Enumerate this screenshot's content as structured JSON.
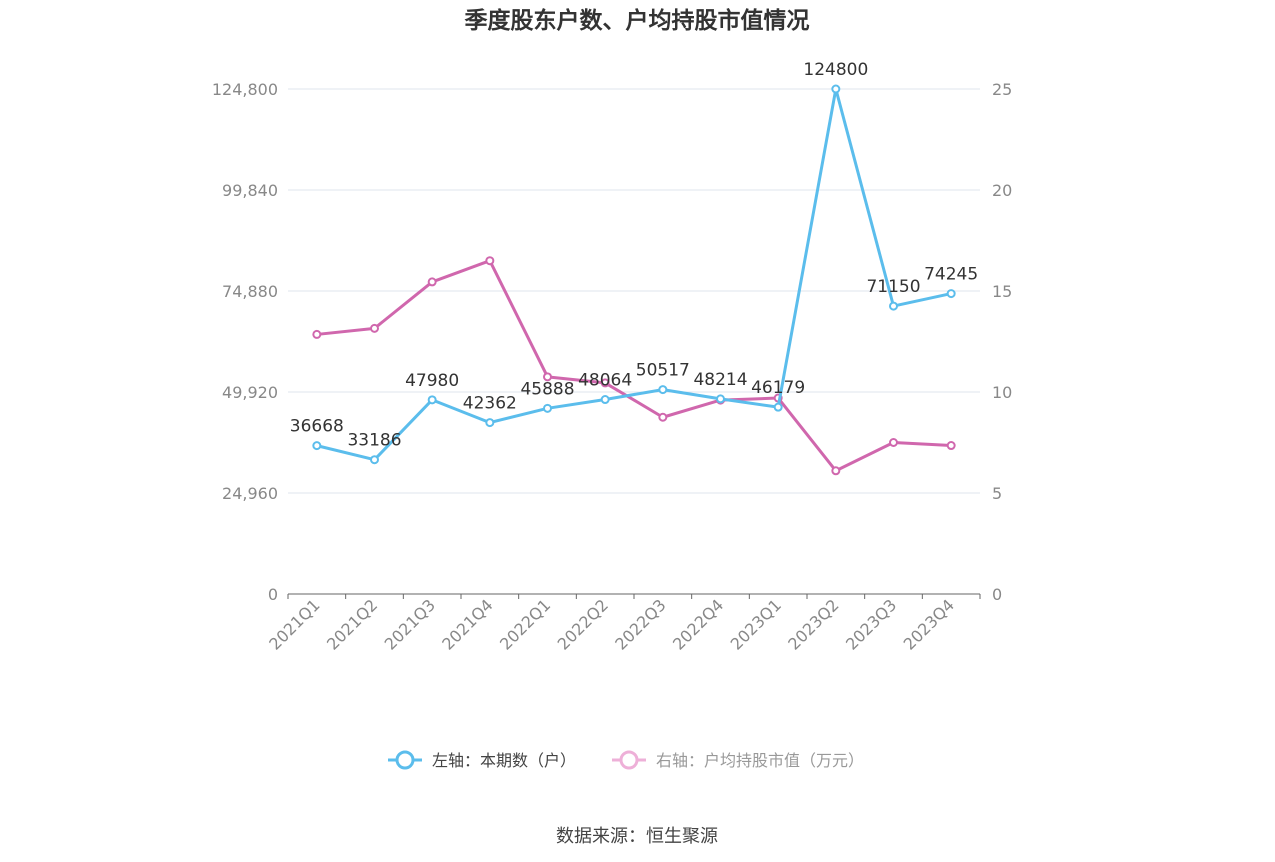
{
  "title": "季度股东户数、户均持股市值情况",
  "source": "数据来源：恒生聚源",
  "legend": {
    "left_label": "左轴：本期数（户）",
    "right_label": "右轴：户均持股市值（万元）"
  },
  "colors": {
    "left_series": "#5bbdec",
    "right_series": "#d067ad",
    "right_legend": "#eeb0d8",
    "grid": "#dfe4ee",
    "axis": "#666666"
  },
  "chart_data": {
    "type": "line",
    "categories": [
      "2021Q1",
      "2021Q2",
      "2021Q3",
      "2021Q4",
      "2022Q1",
      "2022Q2",
      "2022Q3",
      "2022Q4",
      "2023Q1",
      "2023Q2",
      "2023Q3",
      "2023Q4"
    ],
    "left_axis": {
      "ticks": [
        "0",
        "24,960",
        "49,920",
        "74,880",
        "99,840",
        "124,800"
      ],
      "ylim": [
        0,
        124800
      ]
    },
    "right_axis": {
      "ticks": [
        "0",
        "5",
        "10",
        "15",
        "20",
        "25"
      ],
      "ylim": [
        0,
        25
      ]
    },
    "series": [
      {
        "name": "左轴：本期数（户）",
        "axis": "left",
        "values": [
          36668,
          33186,
          47980,
          42362,
          45888,
          48064,
          50517,
          48214,
          46179,
          124800,
          71150,
          74245
        ],
        "labels": [
          "36668",
          "33186",
          "47980",
          "42362",
          "45888",
          "48064",
          "50517",
          "48214",
          "46179",
          "124800",
          "71150",
          "74245"
        ]
      },
      {
        "name": "右轴：户均持股市值（万元）",
        "axis": "right",
        "values": [
          12.85,
          13.15,
          15.45,
          16.5,
          10.75,
          10.45,
          8.75,
          9.6,
          9.7,
          6.1,
          7.5,
          7.35
        ]
      }
    ],
    "grid": true,
    "legend_position": "bottom"
  }
}
